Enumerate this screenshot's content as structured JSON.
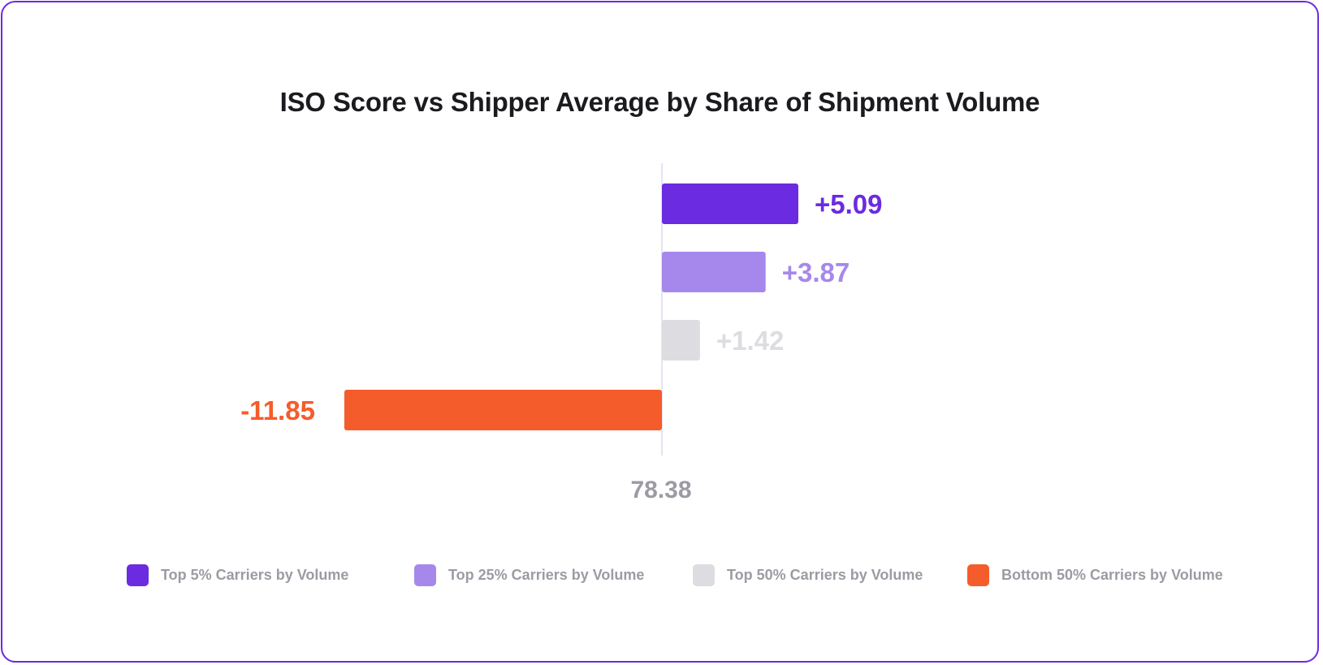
{
  "chart_data": {
    "type": "bar",
    "orientation": "horizontal",
    "title": "ISO Score vs Shipper Average by Share of Shipment Volume",
    "baseline_value": 78.38,
    "baseline_label": "78.38",
    "categories": [
      "Top 5% Carriers by Volume",
      "Top 25% Carriers by Volume",
      "Top 50% Carriers by Volume",
      "Bottom 50% Carriers by Volume"
    ],
    "values": [
      5.09,
      3.87,
      1.42,
      -11.85
    ],
    "value_labels": [
      "+5.09",
      "+3.87",
      "+1.42",
      "-11.85"
    ],
    "colors": [
      "#6b2be0",
      "#a688ec",
      "#dcdce1",
      "#f55c2b"
    ],
    "legend_placement": "bottom",
    "grid": false
  }
}
